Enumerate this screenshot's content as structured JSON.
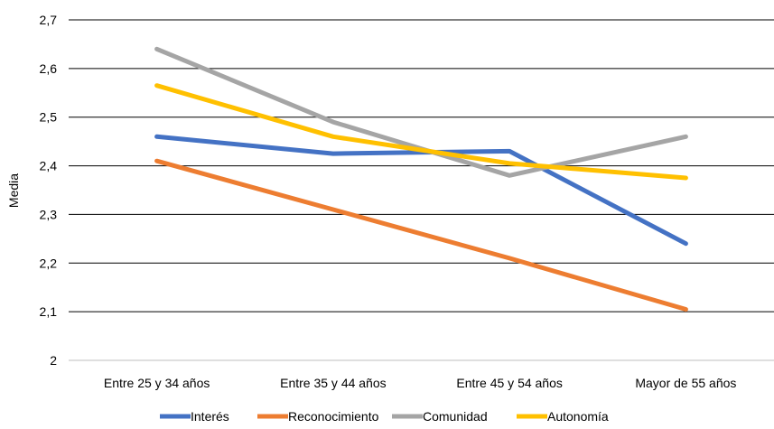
{
  "chart_data": {
    "type": "line",
    "title": "",
    "xlabel": "",
    "ylabel": "Media",
    "categories": [
      "Entre 25 y 34 años",
      "Entre 35 y 44 años",
      "Entre 45 y 54 años",
      "Mayor de 55 años"
    ],
    "ylim": [
      2,
      2.7
    ],
    "yticks": [
      "2",
      "2,1",
      "2,2",
      "2,3",
      "2,4",
      "2,5",
      "2,6",
      "2,7"
    ],
    "grid": true,
    "legend_position": "bottom",
    "series": [
      {
        "name": "Interés",
        "color": "#4472C4",
        "values": [
          2.46,
          2.425,
          2.43,
          2.24
        ]
      },
      {
        "name": "Reconocimiento",
        "color": "#ED7D31",
        "values": [
          2.41,
          2.31,
          2.21,
          2.105
        ]
      },
      {
        "name": "Comunidad",
        "color": "#A5A5A5",
        "values": [
          2.64,
          2.49,
          2.38,
          2.46
        ]
      },
      {
        "name": "Autonomía",
        "color": "#FFC000",
        "values": [
          2.565,
          2.46,
          2.405,
          2.375
        ]
      }
    ]
  }
}
